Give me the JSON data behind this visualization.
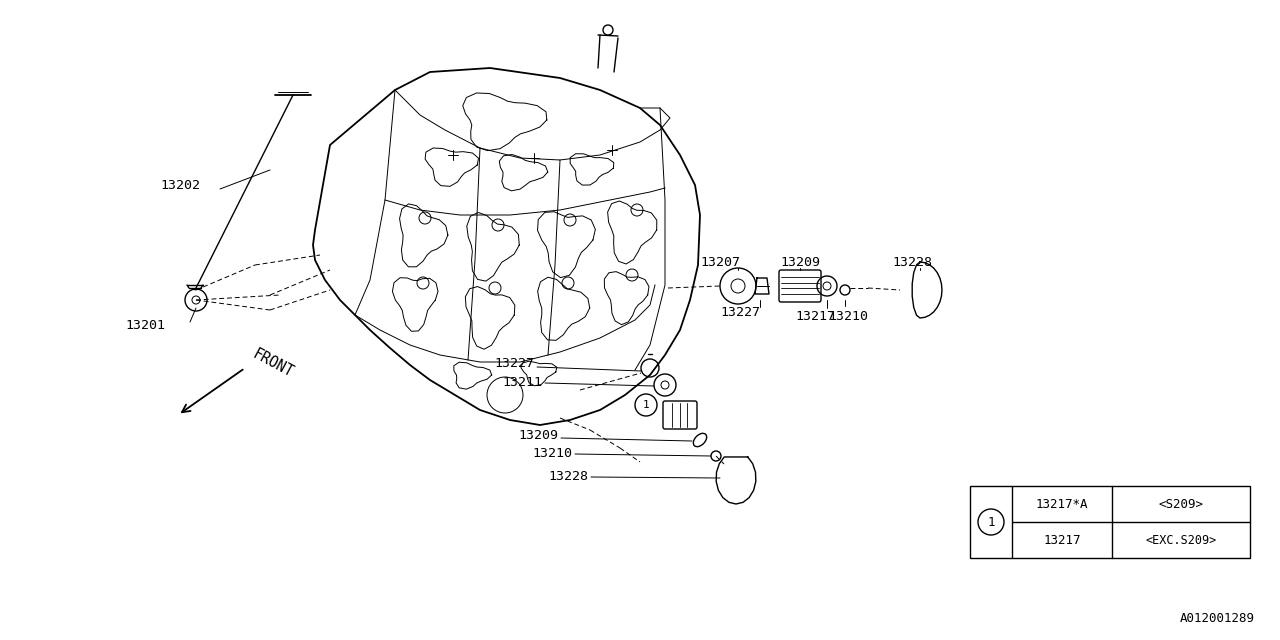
{
  "bg_color": "#ffffff",
  "line_color": "#000000",
  "fig_width": 12.8,
  "fig_height": 6.4,
  "part_number_id": "A012001289",
  "table_rows": [
    [
      "13217*A",
      "<S209>"
    ],
    [
      "13217",
      "<EXC.S209>"
    ]
  ]
}
